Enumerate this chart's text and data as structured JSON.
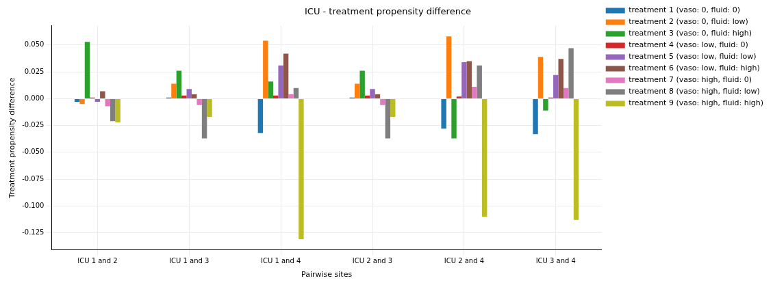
{
  "chart_data": {
    "type": "bar",
    "title": "ICU - treatment propensity difference",
    "xlabel": "Pairwise sites",
    "ylabel": "Treatment propensity difference",
    "categories": [
      "ICU 1 and 2",
      "ICU 1 and 3",
      "ICU 1 and 4",
      "ICU 2 and 3",
      "ICU 2 and 4",
      "ICU 3 and 4"
    ],
    "series": [
      {
        "name": "treatment 1 (vaso: 0, fluid: 0)",
        "color": "#1f77b4",
        "values": [
          -0.003,
          0.001,
          -0.032,
          0.001,
          -0.028,
          -0.033
        ]
      },
      {
        "name": "treatment 2 (vaso: 0, fluid: low)",
        "color": "#ff7f0e",
        "values": [
          -0.005,
          0.014,
          0.054,
          0.014,
          0.058,
          0.039
        ]
      },
      {
        "name": "treatment 3 (vaso: 0, fluid: high)",
        "color": "#2ca02c",
        "values": [
          0.053,
          0.026,
          0.016,
          0.026,
          -0.037,
          -0.011
        ]
      },
      {
        "name": "treatment 4 (vaso: low, fluid: 0)",
        "color": "#d62728",
        "values": [
          0.001,
          0.003,
          0.003,
          0.003,
          0.002,
          0.001
        ]
      },
      {
        "name": "treatment 5 (vaso: low, fluid: low)",
        "color": "#9467bd",
        "values": [
          -0.003,
          0.009,
          0.031,
          0.009,
          0.034,
          0.022
        ]
      },
      {
        "name": "treatment 6 (vaso: low, fluid: high)",
        "color": "#8c564b",
        "values": [
          0.007,
          0.004,
          0.042,
          0.004,
          0.035,
          0.037
        ]
      },
      {
        "name": "treatment 7 (vaso: high, fluid: 0)",
        "color": "#e377c2",
        "values": [
          -0.007,
          -0.006,
          0.004,
          -0.006,
          0.011,
          0.01
        ]
      },
      {
        "name": "treatment 8 (vaso: high, fluid: low)",
        "color": "#7f7f7f",
        "values": [
          -0.021,
          -0.037,
          0.01,
          -0.037,
          0.031,
          0.047
        ]
      },
      {
        "name": "treatment 9 (vaso: high, fluid: high)",
        "color": "#bcbd22",
        "values": [
          -0.022,
          -0.017,
          -0.131,
          -0.017,
          -0.11,
          -0.113
        ]
      }
    ],
    "ylim": [
      -0.141,
      0.068
    ],
    "yticks": [
      {
        "value": -0.125,
        "label": "-0.125"
      },
      {
        "value": -0.1,
        "label": "-0.100"
      },
      {
        "value": -0.075,
        "label": "-0.075"
      },
      {
        "value": -0.05,
        "label": "-0.050"
      },
      {
        "value": -0.025,
        "label": "-0.025"
      },
      {
        "value": 0,
        "label": "0.000"
      },
      {
        "value": 0.025,
        "label": "0.025"
      },
      {
        "value": 0.05,
        "label": "0.050"
      }
    ],
    "grid": true,
    "legend": "top right"
  }
}
